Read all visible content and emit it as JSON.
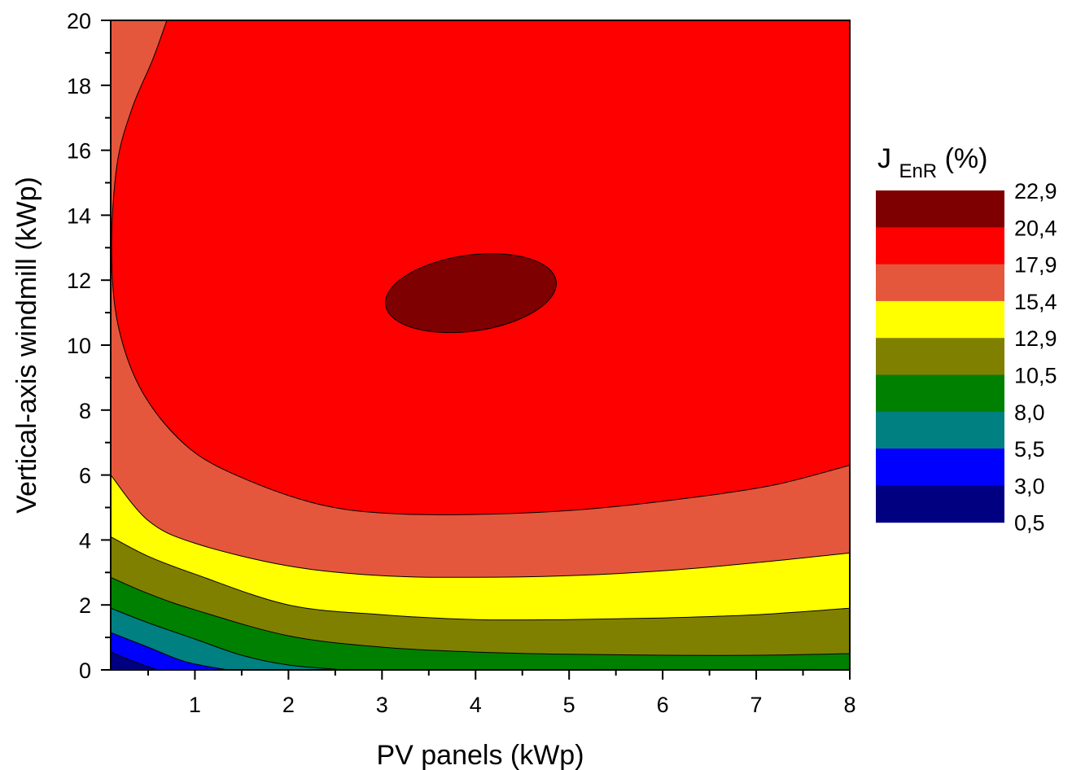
{
  "chart_data": {
    "type": "contour",
    "title": "",
    "xlabel": "PV panels (kWp)",
    "ylabel": "Vertical-axis windmill (kWp)",
    "xlim": [
      0.1,
      8
    ],
    "ylim": [
      0,
      20
    ],
    "xticks": [
      "1",
      "2",
      "3",
      "4",
      "5",
      "6",
      "7",
      "8"
    ],
    "yticks": [
      "0",
      "2",
      "4",
      "6",
      "8",
      "10",
      "12",
      "14",
      "16",
      "18",
      "20"
    ],
    "grid": false,
    "legend": {
      "title_main": "J",
      "title_sub": "EnR",
      "title_unit": " (%)",
      "placement": "right",
      "levels": [
        "22,9",
        "20,4",
        "17,9",
        "15,4",
        "12,9",
        "10,5",
        "8,0",
        "5,5",
        "3,0",
        "0,5"
      ],
      "colors": [
        "#7f0000",
        "#ff0000",
        "#e5573c",
        "#ffff00",
        "#808000",
        "#008000",
        "#008080",
        "#0000ff",
        "#000080"
      ]
    },
    "contours": [
      {
        "range": "22,9–20,4",
        "color": "#7f0000",
        "region": "ellipse",
        "center": [
          3.95,
          11.6
        ],
        "semi_axes": [
          0.92,
          1.5
        ]
      },
      {
        "range": "20,4–17,9",
        "color": "#ff0000",
        "top": [
          [
            0.1,
            20
          ],
          [
            0.7,
            20
          ]
        ],
        "boundary": [
          [
            0.7,
            20
          ],
          [
            0.55,
            18.8
          ],
          [
            0.33,
            17.3
          ],
          [
            0.17,
            15.6
          ],
          [
            0.11,
            13.0
          ],
          [
            0.18,
            10.6
          ],
          [
            0.45,
            8.5
          ],
          [
            0.95,
            6.8
          ],
          [
            1.6,
            5.8
          ],
          [
            2.4,
            5.05
          ],
          [
            3.2,
            4.8
          ],
          [
            4.2,
            4.8
          ],
          [
            5.2,
            4.95
          ],
          [
            6.3,
            5.3
          ],
          [
            7.2,
            5.7
          ],
          [
            8.0,
            6.3
          ]
        ]
      },
      {
        "range": "17,9–15,4",
        "color": "#e5573c",
        "boundary": [
          [
            0.1,
            6.0
          ],
          [
            0.5,
            4.6
          ],
          [
            1.0,
            3.9
          ],
          [
            2.0,
            3.2
          ],
          [
            3.0,
            2.9
          ],
          [
            4.0,
            2.85
          ],
          [
            5.0,
            2.9
          ],
          [
            6.0,
            3.05
          ],
          [
            7.0,
            3.3
          ],
          [
            8.0,
            3.6
          ]
        ]
      },
      {
        "range": "15,4–12,9",
        "color": "#ffff00",
        "boundary": [
          [
            0.1,
            4.1
          ],
          [
            0.5,
            3.5
          ],
          [
            1.0,
            2.95
          ],
          [
            2.0,
            2.0
          ],
          [
            3.0,
            1.7
          ],
          [
            4.0,
            1.55
          ],
          [
            5.0,
            1.55
          ],
          [
            6.0,
            1.6
          ],
          [
            7.0,
            1.7
          ],
          [
            8.0,
            1.9
          ]
        ]
      },
      {
        "range": "12,9–10,5",
        "color": "#808000",
        "boundary": [
          [
            0.1,
            2.85
          ],
          [
            0.5,
            2.35
          ],
          [
            1.0,
            1.85
          ],
          [
            2.0,
            1.05
          ],
          [
            3.0,
            0.7
          ],
          [
            4.0,
            0.55
          ],
          [
            5.0,
            0.48
          ],
          [
            6.0,
            0.45
          ],
          [
            7.0,
            0.45
          ],
          [
            8.0,
            0.5
          ]
        ]
      },
      {
        "range": "10,5–8,0",
        "color": "#008000",
        "boundary": [
          [
            0.1,
            1.9
          ],
          [
            0.5,
            1.45
          ],
          [
            1.0,
            0.95
          ],
          [
            1.5,
            0.45
          ],
          [
            2.0,
            0.15
          ],
          [
            2.6,
            0.0
          ]
        ]
      },
      {
        "range": "8,0–5,5",
        "color": "#008080",
        "boundary": [
          [
            0.1,
            1.15
          ],
          [
            0.5,
            0.7
          ],
          [
            0.9,
            0.25
          ],
          [
            1.35,
            0.0
          ]
        ]
      },
      {
        "range": "5,5–3,0",
        "color": "#0000ff",
        "boundary": [
          [
            0.1,
            0.55
          ],
          [
            0.4,
            0.2
          ],
          [
            0.6,
            0.0
          ]
        ]
      },
      {
        "range": "3,0–0,5",
        "color": "#000080",
        "boundary": [
          [
            0.1,
            0.0
          ]
        ]
      }
    ]
  }
}
